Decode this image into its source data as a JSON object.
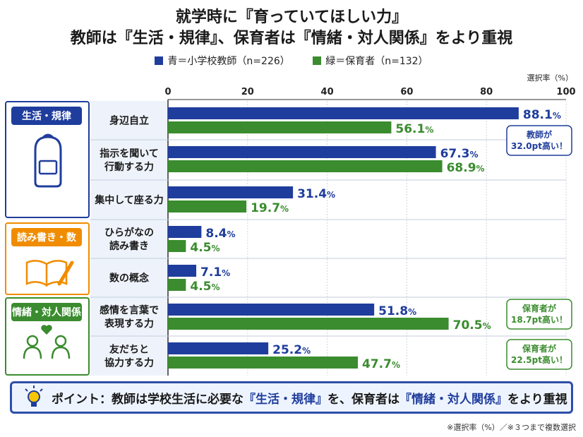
{
  "title_line1": "就学時に『育っていてほしい力』",
  "title_line2": "教師は『生活・規律』、保育者は『情緒・対人関係』をより重視",
  "legend": {
    "teacher": "青＝小学校教師（n=226）",
    "nursery": "緑＝保育者（n=132）"
  },
  "point": {
    "prefix": "ポイント：教師は学校生活に必要な",
    "hl1": "『生活・規律』",
    "mid": "を、保育者は",
    "hl2": "『情緒・対人関係』",
    "suffix": "をより重視"
  },
  "footnote": "※選択率（%）／※３つまで複数選択",
  "colors": {
    "teacher": "#1f3d9c",
    "nursery": "#3a8c2e",
    "cat_blue": "#1f3d9c",
    "cat_orange": "#f08c00",
    "cat_green": "#3a8c2e"
  },
  "chart_data": {
    "type": "bar",
    "orientation": "horizontal",
    "ylabel": "選択率（%）",
    "xlim": [
      0,
      100
    ],
    "ticks": [
      0,
      20,
      40,
      60,
      80,
      100
    ],
    "unit": "%",
    "groups": [
      {
        "label": "生活・規律",
        "color": "#1f3d9c",
        "icon": "backpack-icon",
        "items": [
          0,
          1,
          2
        ]
      },
      {
        "label": "読み書き・数",
        "color": "#f08c00",
        "icon": "book-pencil-icon",
        "items": [
          3,
          4
        ]
      },
      {
        "label": "情緒・対人関係",
        "color": "#3a8c2e",
        "icon": "people-heart-icon",
        "items": [
          5,
          6
        ]
      }
    ],
    "categories": [
      [
        "身辺自立"
      ],
      [
        "指示を聞いて",
        "行動する力"
      ],
      [
        "集中して座る力"
      ],
      [
        "ひらがなの",
        "読み書き"
      ],
      [
        "数の概念"
      ],
      [
        "感情を言葉で",
        "表現する力"
      ],
      [
        "友だちと",
        "協力する力"
      ]
    ],
    "series": [
      {
        "name": "小学校教師",
        "color": "#1f3d9c",
        "values": [
          88.1,
          67.3,
          31.4,
          8.4,
          7.1,
          51.8,
          25.2
        ]
      },
      {
        "name": "保育者",
        "color": "#3a8c2e",
        "values": [
          56.1,
          68.9,
          19.7,
          4.5,
          4.5,
          70.5,
          47.7
        ]
      }
    ],
    "callouts": [
      {
        "item": 0,
        "color": "#1f3d9c",
        "lines": [
          "教師が",
          "32.0pt高い！"
        ]
      },
      {
        "item": 5,
        "color": "#3a8c2e",
        "lines": [
          "保育者が",
          "18.7pt高い！"
        ]
      },
      {
        "item": 6,
        "color": "#3a8c2e",
        "lines": [
          "保育者が",
          "22.5pt高い！"
        ]
      }
    ]
  }
}
